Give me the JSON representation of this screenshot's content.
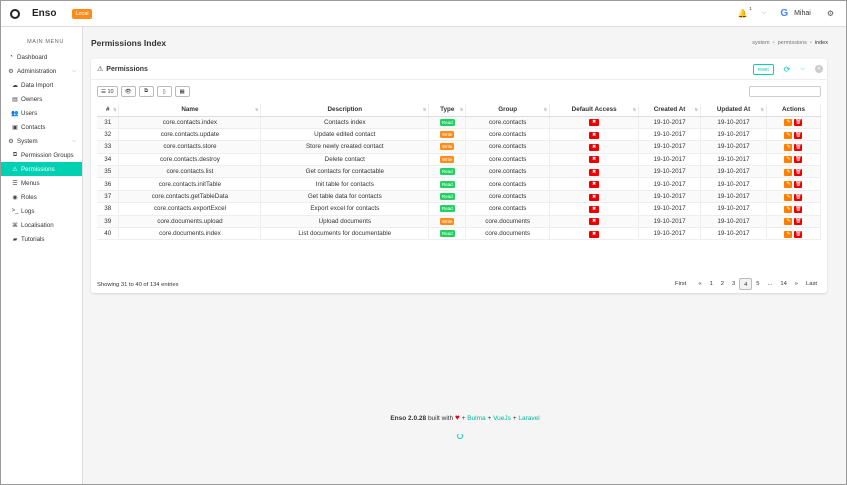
{
  "navbar": {
    "brand": "Enso",
    "env_tag": "Local",
    "notifications_count": "1",
    "user_name": "Mihai"
  },
  "sidebar": {
    "menu_title": "MAIN MENU",
    "items": [
      {
        "label": "Dashboard",
        "icon": "tachometer-icon"
      },
      {
        "label": "Administration",
        "icon": "cogs-icon",
        "expandable": true
      },
      {
        "label": "Data Import",
        "icon": "cloud-upload-icon"
      },
      {
        "label": "Owners",
        "icon": "list-alt-icon"
      },
      {
        "label": "Users",
        "icon": "users-icon"
      },
      {
        "label": "Contacts",
        "icon": "address-book-icon"
      },
      {
        "label": "System",
        "icon": "cog-icon",
        "expandable": true
      },
      {
        "label": "Permission Groups",
        "icon": "object-group-icon"
      },
      {
        "label": "Permissions",
        "icon": "exclamation-triangle-icon",
        "active": true
      },
      {
        "label": "Menus",
        "icon": "list-icon"
      },
      {
        "label": "Roles",
        "icon": "dot-circle-icon"
      },
      {
        "label": "Logs",
        "icon": "terminal-icon"
      },
      {
        "label": "Localisation",
        "icon": "language-icon"
      },
      {
        "label": "Tutorials",
        "icon": "book-icon"
      }
    ]
  },
  "page": {
    "title": "Permissions Index",
    "breadcrumbs": [
      "system",
      "permissions",
      "index"
    ]
  },
  "card": {
    "title": "Permissions",
    "reset_label": "reset",
    "page_length_label": "10"
  },
  "table": {
    "columns": [
      "#",
      "Name",
      "Description",
      "Type",
      "Group",
      "Default Access",
      "Created At",
      "Updated At",
      "Actions"
    ],
    "rows": [
      {
        "id": "31",
        "name": "core.contacts.index",
        "description": "Contacts index",
        "type": "Read",
        "group": "core.contacts",
        "created": "19-10-2017",
        "updated": "19-10-2017"
      },
      {
        "id": "32",
        "name": "core.contacts.update",
        "description": "Update edited contact",
        "type": "Write",
        "group": "core.contacts",
        "created": "19-10-2017",
        "updated": "19-10-2017"
      },
      {
        "id": "33",
        "name": "core.contacts.store",
        "description": "Store newly created contact",
        "type": "Write",
        "group": "core.contacts",
        "created": "19-10-2017",
        "updated": "19-10-2017"
      },
      {
        "id": "34",
        "name": "core.contacts.destroy",
        "description": "Delete contact",
        "type": "Write",
        "group": "core.contacts",
        "created": "19-10-2017",
        "updated": "19-10-2017"
      },
      {
        "id": "35",
        "name": "core.contacts.list",
        "description": "Get contacts for contactable",
        "type": "Read",
        "group": "core.contacts",
        "created": "19-10-2017",
        "updated": "19-10-2017"
      },
      {
        "id": "36",
        "name": "core.contacts.initTable",
        "description": "Init table for contacts",
        "type": "Read",
        "group": "core.contacts",
        "created": "19-10-2017",
        "updated": "19-10-2017"
      },
      {
        "id": "37",
        "name": "core.contacts.getTableData",
        "description": "Get table data for contacts",
        "type": "Read",
        "group": "core.contacts",
        "created": "19-10-2017",
        "updated": "19-10-2017"
      },
      {
        "id": "38",
        "name": "core.contacts.exportExcel",
        "description": "Export excel for contacts",
        "type": "Read",
        "group": "core.contacts",
        "created": "19-10-2017",
        "updated": "19-10-2017"
      },
      {
        "id": "39",
        "name": "core.documents.upload",
        "description": "Upload documents",
        "type": "Write",
        "group": "core.documents",
        "created": "19-10-2017",
        "updated": "19-10-2017"
      },
      {
        "id": "40",
        "name": "core.documents.index",
        "description": "List documents for documentable",
        "type": "Read",
        "group": "core.documents",
        "created": "19-10-2017",
        "updated": "19-10-2017"
      }
    ]
  },
  "status": {
    "showing": "Showing 31 to 40 of 134 entries"
  },
  "pagination": [
    "First",
    "«",
    "1",
    "2",
    "3",
    "4",
    "5",
    "...",
    "14",
    "»",
    "Last"
  ],
  "pagination_current": "4",
  "footer": {
    "version": "Enso 2.0.28",
    "built_with": "built with",
    "plus1": "+",
    "bulma": "Bulma",
    "plus2": "+",
    "vuejs": "VueJs",
    "plus3": "+",
    "laravel": "Laravel"
  },
  "colors": {
    "accent": "#00d1b2",
    "read": "#23d160",
    "write": "#ff8c1a",
    "danger": "#e00000"
  }
}
